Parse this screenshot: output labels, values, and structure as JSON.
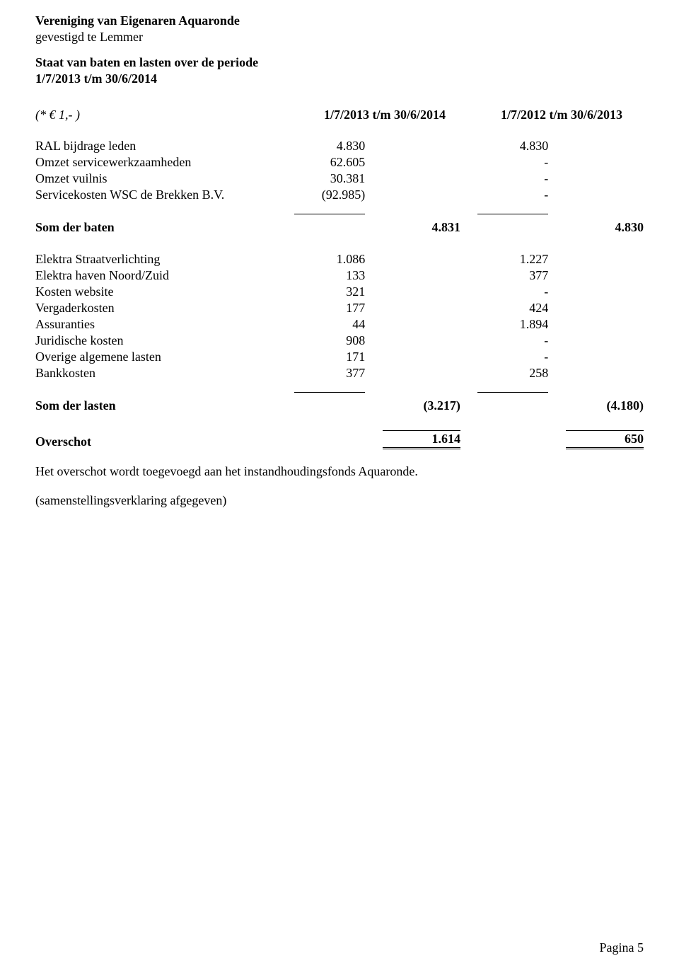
{
  "header": {
    "org_name": "Vereniging van Eigenaren Aquaronde",
    "location": "gevestigd te Lemmer",
    "title_line1": "Staat van baten en lasten over de periode",
    "title_line2": "1/7/2013 t/m 30/6/2014"
  },
  "columns": {
    "unit_label": "(* € 1,- )",
    "period_current": "1/7/2013 t/m 30/6/2014",
    "period_prior": "1/7/2012 t/m 30/6/2013"
  },
  "baten": {
    "rows": [
      {
        "label": "RAL bijdrage leden",
        "cur": "4.830",
        "prior": "4.830"
      },
      {
        "label": "Omzet servicewerkzaamheden",
        "cur": "62.605",
        "prior": "-"
      },
      {
        "label": "Omzet vuilnis",
        "cur": "30.381",
        "prior": "-"
      },
      {
        "label": "Servicekosten WSC de Brekken B.V.",
        "cur": "(92.985)",
        "prior": "-"
      }
    ],
    "sum_label": "Som der baten",
    "sum_cur": "4.831",
    "sum_prior": "4.830"
  },
  "lasten": {
    "rows": [
      {
        "label": "Elektra Straatverlichting",
        "cur": "1.086",
        "prior": "1.227"
      },
      {
        "label": "Elektra haven Noord/Zuid",
        "cur": "133",
        "prior": "377"
      },
      {
        "label": "Kosten website",
        "cur": "321",
        "prior": "-"
      },
      {
        "label": "Vergaderkosten",
        "cur": "177",
        "prior": "424"
      },
      {
        "label": "Assuranties",
        "cur": "44",
        "prior": "1.894"
      },
      {
        "label": "Juridische kosten",
        "cur": "908",
        "prior": "-"
      },
      {
        "label": "Overige algemene lasten",
        "cur": "171",
        "prior": "-"
      },
      {
        "label": "Bankkosten",
        "cur": "377",
        "prior": "258"
      }
    ],
    "sum_label": "Som der lasten",
    "sum_cur": "(3.217)",
    "sum_prior": "(4.180)"
  },
  "overschot": {
    "label": "Overschot",
    "cur": "1.614",
    "prior": "650"
  },
  "notes": {
    "line1": "Het overschot wordt toegevoegd aan het instandhoudingsfonds Aquaronde.",
    "line2": "(samenstellingsverklaring afgegeven)"
  },
  "footer": {
    "page": "Pagina 5"
  }
}
